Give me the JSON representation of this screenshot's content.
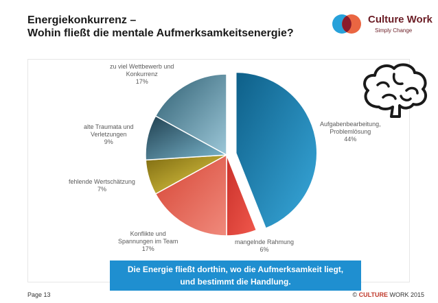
{
  "slide": {
    "title_line1": "Energiekonkurrenz –",
    "title_line2": "Wohin fließt die mentale Aufmerksamkeitsenergie?",
    "page_label": "Page 13",
    "copyright_prefix": "© ",
    "copyright_brand": "CULTURE",
    "copyright_suffix": " WORK 2015"
  },
  "logo": {
    "word": "Culture Work",
    "tagline": "Simply Change",
    "colors": [
      "#1b9cd8",
      "#e8552d",
      "#8b1a2b"
    ]
  },
  "banner": {
    "line1": "Die Energie fließt dorthin, wo die Aufmerksamkeit liegt,",
    "line2": "und bestimmt die Handlung.",
    "color": "#1f8fd0"
  },
  "brain_icon": "brain-icon",
  "chart_data": {
    "type": "pie",
    "start": "12 o'clock",
    "direction": "clockwise",
    "exploded": [
      "Aufgabenbearbeitung, Problemlösung"
    ],
    "slices": [
      {
        "label_lines": [
          "Aufgabenbearbeitung,",
          "Problemlösung"
        ],
        "percent_label": "44%",
        "value": 44,
        "color_light": "#39a9dc",
        "color_dark": "#0e5f88"
      },
      {
        "label_lines": [
          "mangelnde Rahmung"
        ],
        "percent_label": "6%",
        "value": 6,
        "color_light": "#f0584c",
        "color_dark": "#c9302a"
      },
      {
        "label_lines": [
          "Konflikte und",
          "Spannungen im Team"
        ],
        "percent_label": "17%",
        "value": 17,
        "color_light": "#f08a7c",
        "color_dark": "#d64535"
      },
      {
        "label_lines": [
          "fehlende Wertschätzung"
        ],
        "percent_label": "7%",
        "value": 7,
        "color_light": "#e9d24a",
        "color_dark": "#7d6a10"
      },
      {
        "label_lines": [
          "alte Traumata und",
          "Verletzungen"
        ],
        "percent_label": "9%",
        "value": 9,
        "color_light": "#7cb8cf",
        "color_dark": "#1f3f4f"
      },
      {
        "label_lines": [
          "zu viel Wettbewerb und",
          "Konkurrenz"
        ],
        "percent_label": "17%",
        "value": 17,
        "color_light": "#9cc7d8",
        "color_dark": "#2f5f72"
      }
    ]
  }
}
